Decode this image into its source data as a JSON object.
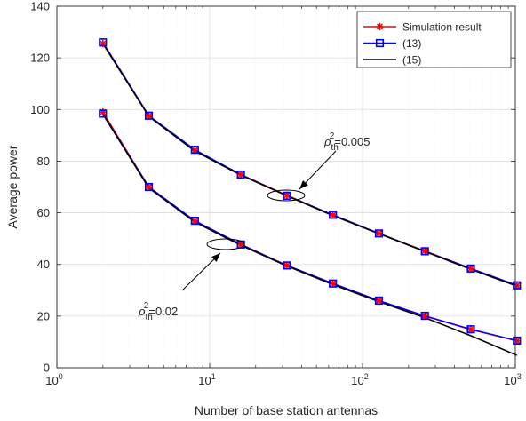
{
  "chart_data": {
    "type": "line",
    "xlabel": "Number of base station antennas",
    "ylabel": "Average power",
    "xscale": "log",
    "xlim": [
      1,
      1000
    ],
    "ylim": [
      0,
      140
    ],
    "grid": true,
    "legend_position": "top-right",
    "x_ticks": [
      {
        "value": 1,
        "base": "10",
        "exp": "0"
      },
      {
        "value": 10,
        "base": "10",
        "exp": "1"
      },
      {
        "value": 100,
        "base": "10",
        "exp": "2"
      },
      {
        "value": 1000,
        "base": "10",
        "exp": "3"
      }
    ],
    "y_ticks": [
      "0",
      "20",
      "40",
      "60",
      "80",
      "100",
      "120",
      "140"
    ],
    "x": [
      2,
      4,
      8,
      16,
      32,
      64,
      128,
      256,
      512,
      1024
    ],
    "series": [
      {
        "name": "Simulation result",
        "group": "rho_th^2=0.005",
        "color": "#ff0000",
        "marker": "asterisk",
        "values": [
          125.5,
          97.5,
          84.2,
          74.8,
          66.8,
          59.1,
          52.0,
          45.2,
          38.4,
          31.8
        ]
      },
      {
        "name": "(13)",
        "group": "rho_th^2=0.005",
        "color": "#0000ff",
        "marker": "square",
        "values": [
          126.0,
          97.6,
          84.4,
          74.8,
          66.6,
          59.2,
          52.0,
          45.1,
          38.4,
          31.9
        ]
      },
      {
        "name": "(15)",
        "group": "rho_th^2=0.005",
        "color": "#000000",
        "marker": "none",
        "values": [
          125.6,
          97.3,
          83.9,
          74.6,
          66.6,
          58.9,
          51.9,
          45.0,
          38.1,
          31.6
        ]
      },
      {
        "name": "Simulation result",
        "group": "rho_th^2=0.02",
        "color": "#ff0000",
        "marker": "asterisk",
        "values": [
          99.0,
          70.0,
          56.8,
          47.8,
          39.6,
          32.6,
          26.0,
          20.0,
          14.8,
          10.4
        ]
      },
      {
        "name": "(13)",
        "group": "rho_th^2=0.02",
        "color": "#0000ff",
        "marker": "square",
        "values": [
          98.4,
          70.0,
          56.9,
          47.7,
          39.6,
          32.6,
          26.0,
          20.1,
          14.9,
          10.5
        ]
      },
      {
        "name": "(15)",
        "group": "rho_th^2=0.02",
        "color": "#000000",
        "marker": "none",
        "values": [
          98.2,
          69.6,
          56.4,
          47.4,
          39.4,
          32.2,
          25.6,
          19.4,
          12.4,
          4.8
        ]
      }
    ],
    "legend": [
      {
        "label": "Simulation result",
        "color": "#ff0000",
        "marker": "asterisk"
      },
      {
        "label": "(13)",
        "color": "#0000ff",
        "marker": "square"
      },
      {
        "label": "(15)",
        "color": "#000000",
        "marker": "none"
      }
    ],
    "annotations": [
      {
        "symbol": "ρ",
        "sub": "th",
        "sup": "2",
        "text": "=0.005"
      },
      {
        "symbol": "ρ",
        "sub": "th",
        "sup": "2",
        "text": "=0.02"
      }
    ]
  }
}
